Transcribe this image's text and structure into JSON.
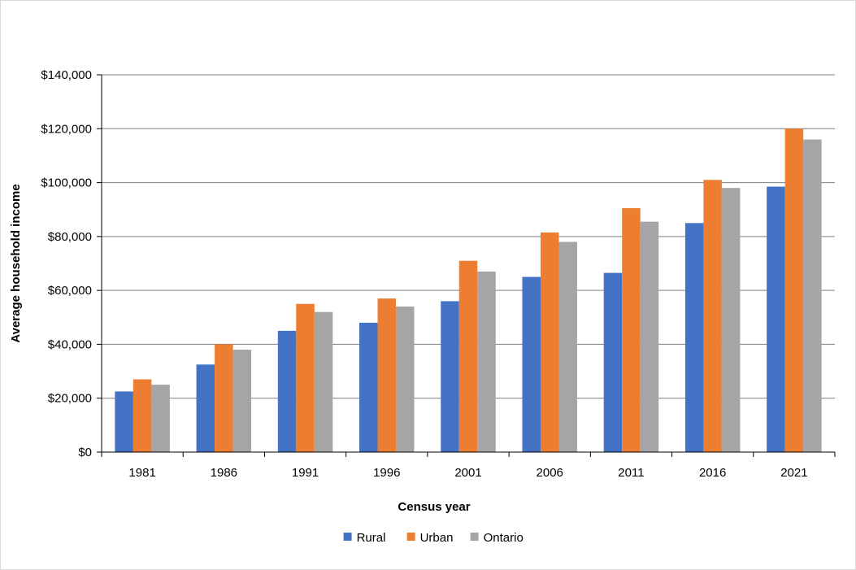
{
  "chart_data": {
    "type": "bar",
    "xlabel": "Census year",
    "ylabel": "Average household income",
    "ylim": [
      0,
      140000
    ],
    "y_ticks": [
      0,
      20000,
      40000,
      60000,
      80000,
      100000,
      120000,
      140000
    ],
    "y_tick_labels": [
      "$0",
      "$20,000",
      "$40,000",
      "$60,000",
      "$80,000",
      "$100,000",
      "$120,000",
      "$140,000"
    ],
    "grid": true,
    "legend_position": "bottom",
    "categories": [
      "1981",
      "1986",
      "1991",
      "1996",
      "2001",
      "2006",
      "2011",
      "2016",
      "2021"
    ],
    "series": [
      {
        "name": "Rural",
        "color": "#4472c4",
        "values": [
          22500,
          32500,
          45000,
          48000,
          56000,
          65000,
          66500,
          85000,
          98500
        ]
      },
      {
        "name": "Urban",
        "color": "#ed7d31",
        "values": [
          27000,
          40000,
          55000,
          57000,
          71000,
          81500,
          90500,
          101000,
          120000
        ]
      },
      {
        "name": "Ontario",
        "color": "#a5a5a5",
        "values": [
          25000,
          38000,
          52000,
          54000,
          67000,
          78000,
          85500,
          98000,
          116000
        ]
      }
    ]
  }
}
